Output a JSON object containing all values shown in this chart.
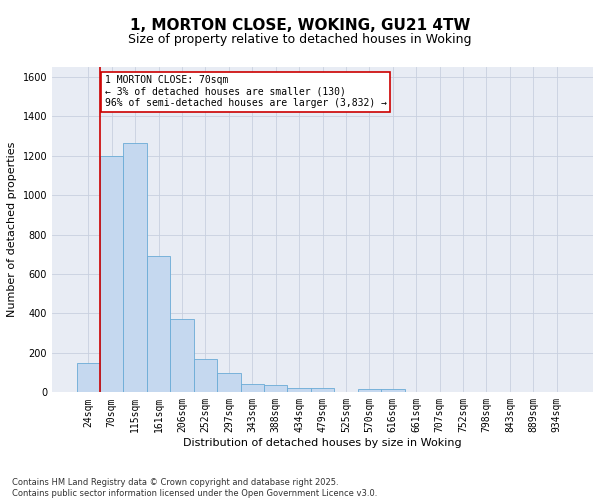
{
  "title": "1, MORTON CLOSE, WOKING, GU21 4TW",
  "subtitle": "Size of property relative to detached houses in Woking",
  "xlabel": "Distribution of detached houses by size in Woking",
  "ylabel": "Number of detached properties",
  "categories": [
    "24sqm",
    "70sqm",
    "115sqm",
    "161sqm",
    "206sqm",
    "252sqm",
    "297sqm",
    "343sqm",
    "388sqm",
    "434sqm",
    "479sqm",
    "525sqm",
    "570sqm",
    "616sqm",
    "661sqm",
    "707sqm",
    "752sqm",
    "798sqm",
    "843sqm",
    "889sqm",
    "934sqm"
  ],
  "values": [
    150,
    1200,
    1265,
    690,
    370,
    170,
    100,
    42,
    35,
    22,
    20,
    0,
    15,
    17,
    0,
    0,
    0,
    0,
    0,
    0,
    0
  ],
  "bar_color": "#c5d8ef",
  "bar_edge_color": "#6aabd6",
  "highlight_index": 1,
  "highlight_line_color": "#cc0000",
  "annotation_line1": "1 MORTON CLOSE: 70sqm",
  "annotation_line2": "← 3% of detached houses are smaller (130)",
  "annotation_line3": "96% of semi-detached houses are larger (3,832) →",
  "annotation_box_color": "#cc0000",
  "ylim": [
    0,
    1650
  ],
  "yticks": [
    0,
    200,
    400,
    600,
    800,
    1000,
    1200,
    1400,
    1600
  ],
  "grid_color": "#c8d0df",
  "bg_color": "#e8ecf4",
  "footnote": "Contains HM Land Registry data © Crown copyright and database right 2025.\nContains public sector information licensed under the Open Government Licence v3.0.",
  "title_fontsize": 11,
  "subtitle_fontsize": 9,
  "xlabel_fontsize": 8,
  "ylabel_fontsize": 8,
  "tick_fontsize": 7,
  "annotation_fontsize": 7,
  "footnote_fontsize": 6
}
